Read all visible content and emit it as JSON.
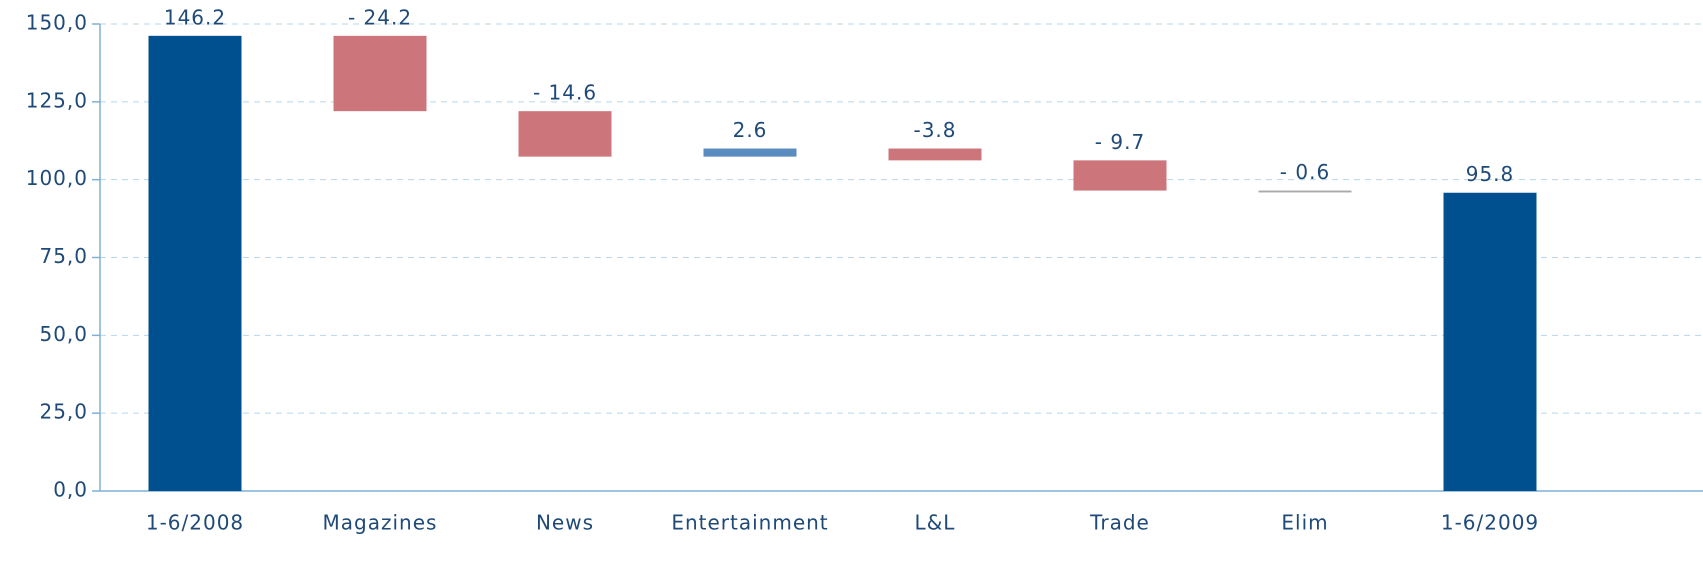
{
  "chart_data": {
    "type": "waterfall",
    "categories": [
      "1-6/2008",
      "Magazines",
      "News",
      "Entertainment",
      "L&L",
      "Trade",
      "Elim",
      "1-6/2009"
    ],
    "values": [
      146.2,
      -24.2,
      -14.6,
      2.6,
      -3.8,
      -9.7,
      -0.6,
      95.8
    ],
    "value_labels": [
      "146.2",
      "- 24.2",
      "- 14.6",
      "2.6",
      "-3.8",
      "- 9.7",
      "- 0.6",
      "95.8"
    ],
    "colors": [
      "#00508f",
      "#cc757a",
      "#cc757a",
      "#5b8cc0",
      "#cc757a",
      "#cc757a",
      "#a9a9a9",
      "#00508f"
    ],
    "ylim": [
      0,
      150
    ],
    "yticks": [
      {
        "value": 0,
        "label": "0,0"
      },
      {
        "value": 25,
        "label": "25,0"
      },
      {
        "value": 50,
        "label": "50,0"
      },
      {
        "value": 75,
        "label": "75,0"
      },
      {
        "value": 100,
        "label": "100,0"
      },
      {
        "value": 125,
        "label": "125,0"
      },
      {
        "value": 150,
        "label": "150,0"
      }
    ],
    "grid": true
  }
}
